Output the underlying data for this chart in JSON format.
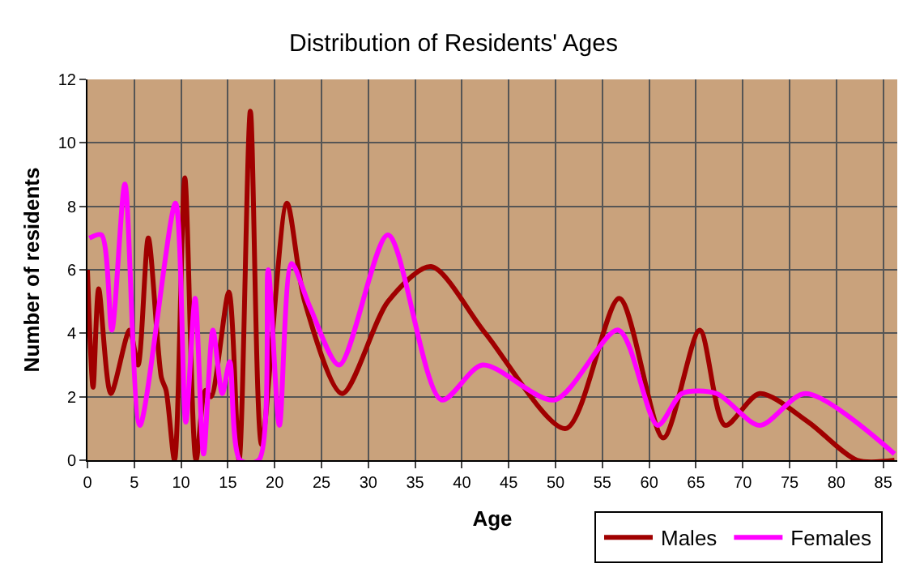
{
  "chart_data": {
    "type": "line",
    "title": "Distribution of Residents' Ages",
    "xlabel": "Age",
    "ylabel": "Number of residents",
    "xlim": [
      0,
      86.5
    ],
    "xticks": [
      0,
      5,
      10,
      15,
      20,
      25,
      30,
      35,
      40,
      45,
      50,
      55,
      60,
      65,
      70,
      75,
      80,
      85
    ],
    "ylim": [
      0,
      12
    ],
    "yticks": [
      0,
      2,
      4,
      6,
      8,
      10,
      12
    ],
    "grid": true,
    "legend": "bottom right",
    "marker": "none",
    "line_style": "solid",
    "series": [
      {
        "name": "Males",
        "color": "#a00000",
        "x": [
          0,
          0.6,
          1.2,
          2.5,
          4.5,
          5.4,
          6.5,
          7.9,
          8.4,
          9.3,
          10.4,
          11.6,
          12.6,
          13.2,
          15.1,
          16.2,
          17.4,
          18.6,
          21.3,
          23.2,
          27.2,
          32.1,
          36.7,
          42.5,
          51.1,
          56.8,
          61.5,
          65.4,
          68.1,
          71.8,
          77,
          82.2,
          86.2
        ],
        "values": [
          6,
          2.3,
          5.4,
          2.1,
          4.1,
          3,
          7,
          2.6,
          2.2,
          0,
          8.9,
          0,
          2.2,
          2,
          5.3,
          0,
          11,
          0.5,
          8.1,
          5,
          2.1,
          5,
          6.1,
          4,
          1,
          5.1,
          0.7,
          4.1,
          1.1,
          2.1,
          1.2,
          0,
          0
        ]
      },
      {
        "name": "Females",
        "color": "#ff00ff",
        "x": [
          0.2,
          1.5,
          2.6,
          4,
          5.6,
          9.4,
          10.5,
          11.5,
          12.4,
          13.4,
          14.4,
          15.2,
          16.3,
          18.3,
          19.3,
          20.5,
          21.8,
          23.8,
          26.9,
          32.1,
          37.8,
          42.2,
          49.9,
          56.7,
          60.9,
          63.5,
          67.2,
          71.8,
          76.7,
          86.2
        ],
        "values": [
          7,
          7.1,
          4.1,
          8.7,
          1.1,
          8.1,
          1.2,
          5.1,
          0.2,
          4.1,
          2.1,
          3.1,
          0,
          0,
          6,
          1.1,
          6.2,
          4.8,
          3,
          7.1,
          1.9,
          3,
          1.9,
          4.1,
          1.1,
          2.1,
          2.1,
          1.1,
          2.1,
          0.2
        ]
      }
    ]
  }
}
